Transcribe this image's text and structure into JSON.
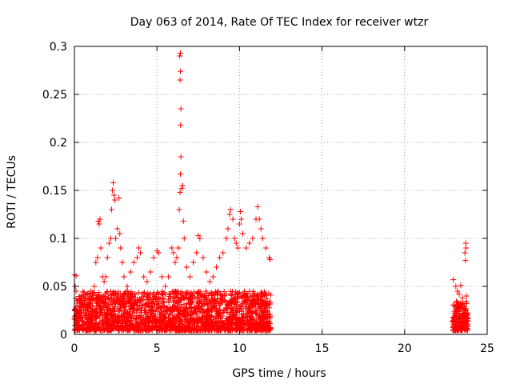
{
  "chart_data": {
    "type": "scatter",
    "title": "Day 063 of 2014, Rate Of TEC Index for receiver wtzr",
    "xlabel": "GPS time / hours",
    "ylabel": "ROTI / TECUs",
    "xlim": [
      0,
      25
    ],
    "ylim": [
      0,
      0.3
    ],
    "xticks": [
      0,
      5,
      10,
      15,
      20,
      25
    ],
    "xtick_labels": [
      "0",
      "5",
      "10",
      "15",
      "20",
      "25"
    ],
    "yticks": [
      0,
      0.05,
      0.1,
      0.15,
      0.2,
      0.25,
      0.3
    ],
    "ytick_labels": [
      "0",
      "0.05",
      "0.1",
      "0.15",
      "0.2",
      "0.25",
      "0.3"
    ],
    "grid": true,
    "marker": "+",
    "color": "#ff0000",
    "series": [
      {
        "name": "ROTI",
        "points": [
          [
            0.0,
            0.062
          ],
          [
            0.1,
            0.061
          ],
          [
            0.05,
            0.05
          ],
          [
            0.1,
            0.045
          ],
          [
            0.15,
            0.035
          ],
          [
            0.2,
            0.025
          ],
          [
            0.3,
            0.03
          ],
          [
            0.4,
            0.02
          ],
          [
            0.6,
            0.035
          ],
          [
            0.8,
            0.03
          ],
          [
            1.0,
            0.045
          ],
          [
            1.2,
            0.05
          ],
          [
            1.3,
            0.075
          ],
          [
            1.4,
            0.08
          ],
          [
            1.45,
            0.118
          ],
          [
            1.5,
            0.115
          ],
          [
            1.55,
            0.12
          ],
          [
            1.6,
            0.09
          ],
          [
            1.7,
            0.06
          ],
          [
            1.8,
            0.055
          ],
          [
            1.9,
            0.06
          ],
          [
            2.0,
            0.08
          ],
          [
            2.1,
            0.095
          ],
          [
            2.2,
            0.1
          ],
          [
            2.25,
            0.13
          ],
          [
            2.3,
            0.15
          ],
          [
            2.35,
            0.158
          ],
          [
            2.4,
            0.145
          ],
          [
            2.45,
            0.14
          ],
          [
            2.5,
            0.1
          ],
          [
            2.6,
            0.11
          ],
          [
            2.7,
            0.142
          ],
          [
            2.75,
            0.105
          ],
          [
            2.8,
            0.09
          ],
          [
            2.9,
            0.075
          ],
          [
            3.0,
            0.06
          ],
          [
            3.2,
            0.05
          ],
          [
            3.4,
            0.065
          ],
          [
            3.6,
            0.075
          ],
          [
            3.8,
            0.08
          ],
          [
            3.9,
            0.09
          ],
          [
            4.0,
            0.085
          ],
          [
            4.2,
            0.06
          ],
          [
            4.4,
            0.055
          ],
          [
            4.6,
            0.065
          ],
          [
            4.8,
            0.08
          ],
          [
            5.0,
            0.087
          ],
          [
            5.1,
            0.085
          ],
          [
            5.3,
            0.06
          ],
          [
            5.5,
            0.05
          ],
          [
            5.7,
            0.06
          ],
          [
            5.9,
            0.09
          ],
          [
            6.0,
            0.085
          ],
          [
            6.1,
            0.075
          ],
          [
            6.2,
            0.08
          ],
          [
            6.3,
            0.09
          ],
          [
            6.35,
            0.13
          ],
          [
            6.4,
            0.148
          ],
          [
            6.42,
            0.167
          ],
          [
            6.45,
            0.185
          ],
          [
            6.43,
            0.218
          ],
          [
            6.45,
            0.235
          ],
          [
            6.4,
            0.265
          ],
          [
            6.42,
            0.274
          ],
          [
            6.38,
            0.29
          ],
          [
            6.42,
            0.293
          ],
          [
            6.5,
            0.152
          ],
          [
            6.55,
            0.155
          ],
          [
            6.6,
            0.118
          ],
          [
            6.65,
            0.1
          ],
          [
            6.8,
            0.07
          ],
          [
            7.0,
            0.06
          ],
          [
            7.2,
            0.075
          ],
          [
            7.4,
            0.085
          ],
          [
            7.5,
            0.103
          ],
          [
            7.6,
            0.1
          ],
          [
            7.8,
            0.08
          ],
          [
            8.0,
            0.065
          ],
          [
            8.2,
            0.055
          ],
          [
            8.4,
            0.06
          ],
          [
            8.6,
            0.07
          ],
          [
            8.8,
            0.08
          ],
          [
            9.0,
            0.085
          ],
          [
            9.2,
            0.1
          ],
          [
            9.3,
            0.11
          ],
          [
            9.4,
            0.125
          ],
          [
            9.45,
            0.13
          ],
          [
            9.6,
            0.12
          ],
          [
            9.7,
            0.1
          ],
          [
            9.8,
            0.095
          ],
          [
            9.9,
            0.09
          ],
          [
            10.0,
            0.115
          ],
          [
            10.05,
            0.128
          ],
          [
            10.1,
            0.12
          ],
          [
            10.2,
            0.105
          ],
          [
            10.4,
            0.09
          ],
          [
            10.6,
            0.095
          ],
          [
            10.8,
            0.1
          ],
          [
            11.0,
            0.12
          ],
          [
            11.1,
            0.133
          ],
          [
            11.2,
            0.12
          ],
          [
            11.3,
            0.11
          ],
          [
            11.4,
            0.1
          ],
          [
            11.6,
            0.09
          ],
          [
            11.8,
            0.08
          ],
          [
            11.85,
            0.078
          ],
          [
            22.95,
            0.057
          ],
          [
            23.1,
            0.05
          ],
          [
            23.2,
            0.045
          ],
          [
            23.3,
            0.042
          ],
          [
            23.4,
            0.051
          ],
          [
            23.5,
            0.038
          ],
          [
            23.6,
            0.03
          ],
          [
            23.65,
            0.085
          ],
          [
            23.7,
            0.095
          ],
          [
            23.72,
            0.09
          ],
          [
            23.68,
            0.077
          ],
          [
            23.75,
            0.04
          ],
          [
            23.8,
            0.02
          ]
        ]
      }
    ],
    "bands": [
      {
        "x_start": 0.0,
        "x_end": 11.9,
        "y_min": 0.004,
        "y_max": 0.045
      },
      {
        "x_start": 22.9,
        "x_end": 23.85,
        "y_min": 0.004,
        "y_max": 0.035
      }
    ]
  }
}
